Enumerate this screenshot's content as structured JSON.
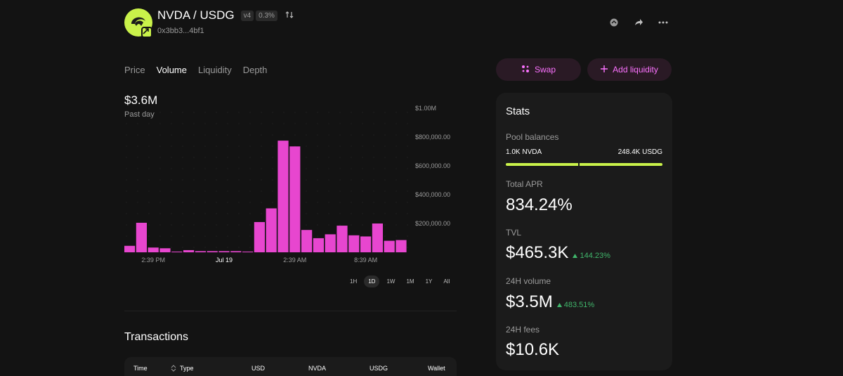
{
  "pool": {
    "pair": "NVDA / USDG",
    "version": "v4",
    "fee": "0.3%",
    "address": "0x3bb3...4bf1"
  },
  "icons": {
    "logo": "token-logo-icon",
    "logo_badge": "chain-badge-icon",
    "swap_direction": "swap-direction-icon",
    "explorer": "explorer-icon",
    "share": "share-icon",
    "more": "more-icon",
    "swap": "swap-sparkle-icon",
    "add": "plus-icon",
    "sort": "sort-icon"
  },
  "colors": {
    "background": "#131313",
    "card": "#1b1b1b",
    "accent": "#fc72ff",
    "accent_bg": "#2a1a25",
    "bars": "#e746cf",
    "token": "#c9f24a",
    "positive": "#40b66b"
  },
  "tabs": [
    {
      "label": "Price",
      "active": false
    },
    {
      "label": "Volume",
      "active": true
    },
    {
      "label": "Liquidity",
      "active": false
    },
    {
      "label": "Depth",
      "active": false
    }
  ],
  "actions": {
    "swap": "Swap",
    "add_liquidity": "Add liquidity"
  },
  "chart_header": {
    "value": "$3.6M",
    "period": "Past day"
  },
  "chart_data": {
    "type": "bar",
    "x_tick_labels": [
      "2:39 PM",
      "Jul 19",
      "2:39 AM",
      "8:39 AM"
    ],
    "y_tick_labels": [
      "$1.00M",
      "$800,000.00",
      "$600,000.00",
      "$400,000.00",
      "$200,000.00"
    ],
    "ylim": [
      0,
      1000000
    ],
    "values": [
      45000,
      205000,
      33000,
      28000,
      5000,
      15000,
      8000,
      8000,
      8000,
      8000,
      5000,
      210000,
      305000,
      775000,
      735000,
      155000,
      98000,
      125000,
      185000,
      118000,
      110000,
      200000,
      80000,
      85000
    ],
    "grid": "dotted"
  },
  "ranges": [
    {
      "label": "1H",
      "active": false
    },
    {
      "label": "1D",
      "active": true
    },
    {
      "label": "1W",
      "active": false
    },
    {
      "label": "1M",
      "active": false
    },
    {
      "label": "1Y",
      "active": false
    },
    {
      "label": "All",
      "active": false
    }
  ],
  "transactions": {
    "title": "Transactions",
    "columns": [
      "Time",
      "Type",
      "USD",
      "NVDA",
      "USDG",
      "Wallet"
    ]
  },
  "stats": {
    "title": "Stats",
    "pool_balances_label": "Pool balances",
    "balance_a": "1.0K NVDA",
    "balance_b": "248.4K USDG",
    "balance_share_a": 0.46,
    "apr_label": "Total APR",
    "apr_value": "834.24%",
    "tvl_label": "TVL",
    "tvl_value": "$465.3K",
    "tvl_change": "144.23%",
    "volume_label": "24H volume",
    "volume_value": "$3.5M",
    "volume_change": "483.51%",
    "fees_label": "24H fees",
    "fees_value": "$10.6K"
  }
}
